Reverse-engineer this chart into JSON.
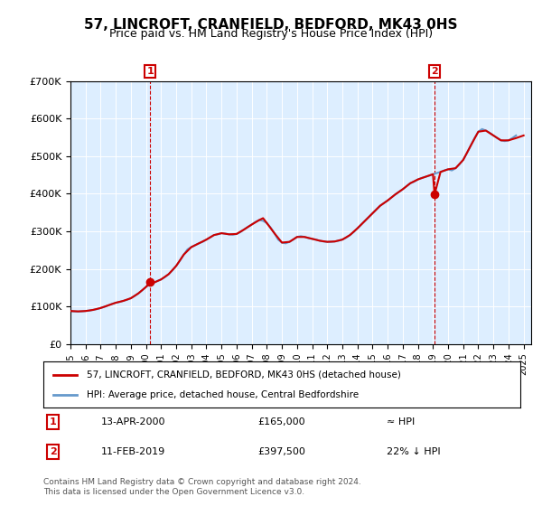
{
  "title": "57, LINCROFT, CRANFIELD, BEDFORD, MK43 0HS",
  "subtitle": "Price paid vs. HM Land Registry's House Price Index (HPI)",
  "ylim": [
    0,
    700000
  ],
  "xlim_start": 1995.0,
  "xlim_end": 2025.5,
  "sale1_x": 2000.28,
  "sale1_y": 165000,
  "sale1_label": "1",
  "sale1_date": "13-APR-2000",
  "sale1_price": "£165,000",
  "sale1_note": "≈ HPI",
  "sale2_x": 2019.1,
  "sale2_y": 397500,
  "sale2_label": "2",
  "sale2_date": "11-FEB-2019",
  "sale2_price": "£397,500",
  "sale2_note": "22% ↓ HPI",
  "red_line_color": "#cc0000",
  "blue_line_color": "#6699cc",
  "marker_color": "#cc0000",
  "vline_color": "#cc0000",
  "annotation_box_color": "#cc0000",
  "plot_bg_color": "#ddeeff",
  "legend_label1": "57, LINCROFT, CRANFIELD, BEDFORD, MK43 0HS (detached house)",
  "legend_label2": "HPI: Average price, detached house, Central Bedfordshire",
  "footer1": "Contains HM Land Registry data © Crown copyright and database right 2024.",
  "footer2": "This data is licensed under the Open Government Licence v3.0.",
  "hpi_data": {
    "x": [
      1995.0,
      1995.25,
      1995.5,
      1995.75,
      1996.0,
      1996.25,
      1996.5,
      1996.75,
      1997.0,
      1997.25,
      1997.5,
      1997.75,
      1998.0,
      1998.25,
      1998.5,
      1998.75,
      1999.0,
      1999.25,
      1999.5,
      1999.75,
      2000.0,
      2000.25,
      2000.5,
      2000.75,
      2001.0,
      2001.25,
      2001.5,
      2001.75,
      2002.0,
      2002.25,
      2002.5,
      2002.75,
      2003.0,
      2003.25,
      2003.5,
      2003.75,
      2004.0,
      2004.25,
      2004.5,
      2004.75,
      2005.0,
      2005.25,
      2005.5,
      2005.75,
      2006.0,
      2006.25,
      2006.5,
      2006.75,
      2007.0,
      2007.25,
      2007.5,
      2007.75,
      2008.0,
      2008.25,
      2008.5,
      2008.75,
      2009.0,
      2009.25,
      2009.5,
      2009.75,
      2010.0,
      2010.25,
      2010.5,
      2010.75,
      2011.0,
      2011.25,
      2011.5,
      2011.75,
      2012.0,
      2012.25,
      2012.5,
      2012.75,
      2013.0,
      2013.25,
      2013.5,
      2013.75,
      2014.0,
      2014.25,
      2014.5,
      2014.75,
      2015.0,
      2015.25,
      2015.5,
      2015.75,
      2016.0,
      2016.25,
      2016.5,
      2016.75,
      2017.0,
      2017.25,
      2017.5,
      2017.75,
      2018.0,
      2018.25,
      2018.5,
      2018.75,
      2019.0,
      2019.25,
      2019.5,
      2019.75,
      2020.0,
      2020.25,
      2020.5,
      2020.75,
      2021.0,
      2021.25,
      2021.5,
      2021.75,
      2022.0,
      2022.25,
      2022.5,
      2022.75,
      2023.0,
      2023.25,
      2023.5,
      2023.75,
      2024.0,
      2024.25,
      2024.5
    ],
    "y": [
      88000,
      87000,
      86500,
      87000,
      88000,
      89000,
      91000,
      93000,
      96000,
      99000,
      103000,
      107000,
      110000,
      112000,
      115000,
      118000,
      122000,
      128000,
      135000,
      143000,
      152000,
      158000,
      163000,
      168000,
      172000,
      178000,
      186000,
      196000,
      208000,
      222000,
      238000,
      252000,
      258000,
      263000,
      268000,
      272000,
      278000,
      284000,
      290000,
      292000,
      295000,
      294000,
      292000,
      291000,
      293000,
      298000,
      305000,
      312000,
      318000,
      325000,
      330000,
      328000,
      322000,
      310000,
      295000,
      278000,
      270000,
      268000,
      272000,
      278000,
      285000,
      287000,
      285000,
      282000,
      280000,
      278000,
      275000,
      273000,
      272000,
      272000,
      273000,
      275000,
      278000,
      283000,
      290000,
      298000,
      308000,
      318000,
      328000,
      338000,
      348000,
      358000,
      368000,
      375000,
      382000,
      390000,
      398000,
      405000,
      412000,
      420000,
      428000,
      432000,
      438000,
      442000,
      445000,
      448000,
      452000,
      455000,
      458000,
      462000,
      465000,
      462000,
      468000,
      478000,
      490000,
      508000,
      528000,
      548000,
      565000,
      572000,
      568000,
      562000,
      555000,
      548000,
      542000,
      540000,
      542000,
      548000,
      555000
    ]
  },
  "red_data": {
    "x": [
      1995.0,
      1995.5,
      1996.0,
      1996.5,
      1997.0,
      1997.5,
      1998.0,
      1998.5,
      1999.0,
      1999.5,
      2000.0,
      2000.28,
      2000.5,
      2001.0,
      2001.5,
      2002.0,
      2002.5,
      2003.0,
      2003.5,
      2004.0,
      2004.5,
      2005.0,
      2005.5,
      2006.0,
      2006.5,
      2007.0,
      2007.5,
      2007.75,
      2008.0,
      2008.5,
      2009.0,
      2009.5,
      2010.0,
      2010.5,
      2011.0,
      2011.5,
      2012.0,
      2012.5,
      2013.0,
      2013.5,
      2014.0,
      2014.5,
      2015.0,
      2015.5,
      2016.0,
      2016.5,
      2017.0,
      2017.5,
      2018.0,
      2018.5,
      2019.0,
      2019.1,
      2019.5,
      2020.0,
      2020.5,
      2021.0,
      2021.5,
      2022.0,
      2022.5,
      2023.0,
      2023.5,
      2024.0,
      2024.5,
      2025.0
    ],
    "y": [
      88000,
      87000,
      88000,
      91000,
      96000,
      103000,
      110000,
      115000,
      122000,
      135000,
      152000,
      165000,
      163000,
      172000,
      186000,
      208000,
      238000,
      258000,
      268000,
      278000,
      290000,
      295000,
      292000,
      293000,
      305000,
      318000,
      330000,
      335000,
      322000,
      295000,
      270000,
      272000,
      285000,
      285000,
      280000,
      275000,
      272000,
      273000,
      278000,
      290000,
      308000,
      328000,
      348000,
      368000,
      382000,
      398000,
      412000,
      428000,
      438000,
      445000,
      452000,
      397500,
      458000,
      465000,
      468000,
      490000,
      528000,
      565000,
      568000,
      555000,
      542000,
      542000,
      548000,
      555000
    ]
  }
}
